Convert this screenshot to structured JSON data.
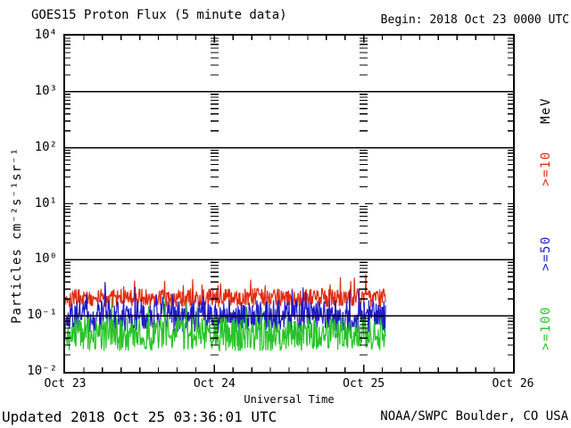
{
  "footer": {
    "updated": "Updated 2018 Oct 25 03:36:01 UTC",
    "source": "NOAA/SWPC Boulder, CO USA"
  },
  "chart_data": {
    "type": "line",
    "title": "GOES15 Proton Flux (5 minute data)",
    "begin_label": "Begin: 2018 Oct 23 0000 UTC",
    "xlabel": "Universal Time",
    "ylabel": "Particles cm⁻²s⁻¹sr⁻¹",
    "unit_label": "MeV",
    "x_ticks": [
      "Oct 23",
      "Oct 24",
      "Oct 25",
      "Oct 26"
    ],
    "x_range_days": 3,
    "x_minor_tick_hours": 3,
    "y_tick_labels": [
      "10⁴",
      "10³",
      "10²",
      "10¹",
      "10⁰",
      "10⁻¹",
      "10⁻²"
    ],
    "y_tick_exponents": [
      4,
      3,
      2,
      1,
      0,
      -1,
      -2
    ],
    "ylim": [
      0.01,
      10000
    ],
    "y_scale": "log",
    "solid_gridline_exponents": [
      3,
      2,
      0,
      -1
    ],
    "dashed_gridline_exponent": 1,
    "grid": "horizontal decade lines; log minor ticks on edges and at interior day boundaries",
    "legend_position": "right edge, rotated 90deg",
    "sample_minutes": 5,
    "data_end_day": 2.146,
    "series": [
      {
        "name": "Proton flux >=10 MeV",
        "legend": ">=10",
        "color": "#e02c12",
        "approx_mean": 0.2,
        "approx_range": [
          0.13,
          0.45
        ],
        "log_center": -0.68,
        "log_amplitude": 0.17,
        "spike_day": 2.015,
        "spike_value": 0.55,
        "seed": 101
      },
      {
        "name": "Proton flux >=50 MeV",
        "legend": ">=50",
        "color": "#221bc8",
        "approx_mean": 0.1,
        "approx_range": [
          0.05,
          0.25
        ],
        "log_center": -1.01,
        "log_amplitude": 0.29,
        "seed": 202
      },
      {
        "name": "Proton flux >=100 MeV",
        "legend": ">=100",
        "color": "#28c428",
        "approx_mean": 0.046,
        "approx_range": [
          0.023,
          0.1
        ],
        "log_center": -1.33,
        "log_amplitude": 0.3,
        "seed": 303
      }
    ]
  }
}
